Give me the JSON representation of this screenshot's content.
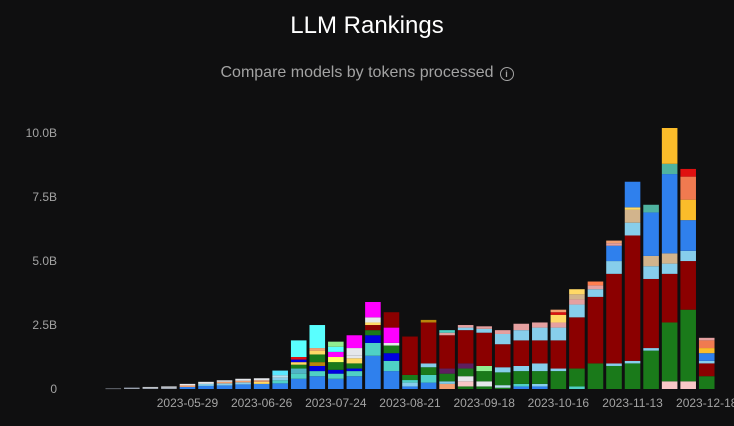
{
  "header": {
    "title": "LLM Rankings",
    "subtitle": "Compare models by tokens processed"
  },
  "chart_data": {
    "type": "bar",
    "stacked": true,
    "title": "LLM Rankings",
    "subtitle": "Compare models by tokens processed",
    "xlabel": "",
    "ylabel": "",
    "ylim": [
      0,
      10.2
    ],
    "y_unit": "B",
    "y_ticks": [
      {
        "value": 0,
        "label": "0"
      },
      {
        "value": 2.5,
        "label": "2.5B"
      },
      {
        "value": 5,
        "label": "5.0B"
      },
      {
        "value": 7.5,
        "label": "7.5B"
      },
      {
        "value": 10,
        "label": "10.0B"
      }
    ],
    "x_tick_labels": [
      "2023-05-29",
      "2023-06-26",
      "2023-07-24",
      "2023-08-21",
      "2023-09-18",
      "2023-10-16",
      "2023-11-13",
      "2023-12-18"
    ],
    "x_tick_positions": [
      4,
      8,
      12,
      16,
      20,
      24,
      28,
      32
    ],
    "grid": false,
    "legend": "none",
    "bars": [
      {
        "segments": [
          [
            0.02,
            "#9ca3af"
          ]
        ]
      },
      {
        "segments": [
          [
            0.04,
            "#9ca3af"
          ],
          [
            0.02,
            "#6b7280"
          ]
        ]
      },
      {
        "segments": [
          [
            0.05,
            "#9ca3af"
          ],
          [
            0.03,
            "#e5e7eb"
          ]
        ]
      },
      {
        "segments": [
          [
            0.06,
            "#9ca3af"
          ],
          [
            0.04,
            "#e5e7eb"
          ]
        ]
      },
      {
        "segments": [
          [
            0.08,
            "#2f80ed"
          ],
          [
            0.06,
            "#f2a071"
          ],
          [
            0.06,
            "#e5e7eb"
          ]
        ]
      },
      {
        "segments": [
          [
            0.12,
            "#2f80ed"
          ],
          [
            0.08,
            "#87ceeb"
          ],
          [
            0.08,
            "#e5e7eb"
          ]
        ]
      },
      {
        "segments": [
          [
            0.14,
            "#2f80ed"
          ],
          [
            0.08,
            "#87ceeb"
          ],
          [
            0.06,
            "#f2a071"
          ],
          [
            0.06,
            "#e5e7eb"
          ]
        ]
      },
      {
        "segments": [
          [
            0.18,
            "#2f80ed"
          ],
          [
            0.08,
            "#87ceeb"
          ],
          [
            0.06,
            "#f2a071"
          ],
          [
            0.08,
            "#e5e7eb"
          ]
        ]
      },
      {
        "segments": [
          [
            0.2,
            "#2f80ed"
          ],
          [
            0.08,
            "#ffd966"
          ],
          [
            0.06,
            "#f2a071"
          ],
          [
            0.08,
            "#e5e7eb"
          ]
        ]
      },
      {
        "segments": [
          [
            0.22,
            "#2f80ed"
          ],
          [
            0.12,
            "#4fd1c5"
          ],
          [
            0.1,
            "#87ceeb"
          ],
          [
            0.1,
            "#b8e0f0"
          ],
          [
            0.18,
            "#59e7ff"
          ]
        ]
      },
      {
        "segments": [
          [
            0.4,
            "#2f80ed"
          ],
          [
            0.2,
            "#4fd1c5"
          ],
          [
            0.2,
            "#4fb3c5"
          ],
          [
            0.15,
            "#1a7a1a"
          ],
          [
            0.1,
            "#ffd966"
          ],
          [
            0.1,
            "#0000e0"
          ],
          [
            0.1,
            "#e01010"
          ],
          [
            0.65,
            "#59ffff"
          ]
        ]
      },
      {
        "segments": [
          [
            0.5,
            "#2f80ed"
          ],
          [
            0.2,
            "#4fd1c5"
          ],
          [
            0.2,
            "#0000e0"
          ],
          [
            0.15,
            "#b8860b"
          ],
          [
            0.3,
            "#1a7a1a"
          ],
          [
            0.15,
            "#ffd966"
          ],
          [
            0.1,
            "#f2a071"
          ],
          [
            0.9,
            "#59ffff"
          ]
        ]
      },
      {
        "segments": [
          [
            0.4,
            "#2f80ed"
          ],
          [
            0.2,
            "#4fd1c5"
          ],
          [
            0.15,
            "#0000e0"
          ],
          [
            0.3,
            "#1a7a1a"
          ],
          [
            0.2,
            "#ffff66"
          ],
          [
            0.2,
            "#ff00ff"
          ],
          [
            0.2,
            "#59ffff"
          ],
          [
            0.2,
            "#90ee90"
          ]
        ]
      },
      {
        "segments": [
          [
            0.5,
            "#2f80ed"
          ],
          [
            0.2,
            "#4fd1c5"
          ],
          [
            0.1,
            "#0000e0"
          ],
          [
            0.2,
            "#1a7a1a"
          ],
          [
            0.2,
            "#ffd966"
          ],
          [
            0.1,
            "#e5e7eb"
          ],
          [
            0.3,
            "#e5e7eb"
          ],
          [
            0.5,
            "#ff00ff"
          ]
        ]
      },
      {
        "segments": [
          [
            1.3,
            "#2f80ed"
          ],
          [
            0.5,
            "#4fd1c5"
          ],
          [
            0.3,
            "#0000e0"
          ],
          [
            0.2,
            "#1a7a1a"
          ],
          [
            0.2,
            "#8b0000"
          ],
          [
            0.1,
            "#ffd966"
          ],
          [
            0.2,
            "#e5e7eb"
          ],
          [
            0.6,
            "#ff00ff"
          ]
        ]
      },
      {
        "segments": [
          [
            0.7,
            "#2f80ed"
          ],
          [
            0.4,
            "#4fd1c5"
          ],
          [
            0.3,
            "#0000e0"
          ],
          [
            0.3,
            "#1a7a1a"
          ],
          [
            0.1,
            "#e5e7eb"
          ],
          [
            0.6,
            "#ff00ff"
          ],
          [
            0.6,
            "#8b0000"
          ]
        ]
      },
      {
        "segments": [
          [
            0.1,
            "#2f80ed"
          ],
          [
            0.15,
            "#87ceeb"
          ],
          [
            0.1,
            "#4fd1c5"
          ],
          [
            0.2,
            "#1a7a1a"
          ],
          [
            1.5,
            "#8b0000"
          ]
        ]
      },
      {
        "segments": [
          [
            0.25,
            "#2f80ed"
          ],
          [
            0.3,
            "#4fd1c5"
          ],
          [
            0.3,
            "#1a7a1a"
          ],
          [
            0.15,
            "#87ceeb"
          ],
          [
            1.6,
            "#8b0000"
          ],
          [
            0.1,
            "#b8860b"
          ]
        ]
      },
      {
        "segments": [
          [
            0.2,
            "#f2a071"
          ],
          [
            0.1,
            "#87ceeb"
          ],
          [
            0.3,
            "#1a7a1a"
          ],
          [
            0.2,
            "#5f1f5f"
          ],
          [
            1.3,
            "#8b0000"
          ],
          [
            0.1,
            "#e5a0a0"
          ],
          [
            0.1,
            "#4fd1c5"
          ]
        ]
      },
      {
        "segments": [
          [
            0.1,
            "#1a7a1a"
          ],
          [
            0.2,
            "#f9c7c7"
          ],
          [
            0.2,
            "#e5e7eb"
          ],
          [
            0.3,
            "#1a7a1a"
          ],
          [
            0.2,
            "#5f1f5f"
          ],
          [
            1.3,
            "#8b0000"
          ],
          [
            0.1,
            "#87ceeb"
          ],
          [
            0.1,
            "#e5a0a0"
          ]
        ]
      },
      {
        "segments": [
          [
            0.1,
            "#1a7a1a"
          ],
          [
            0.2,
            "#e5e7eb"
          ],
          [
            0.4,
            "#1a7a1a"
          ],
          [
            0.2,
            "#90ee90"
          ],
          [
            1.3,
            "#8b0000"
          ],
          [
            0.15,
            "#87ceeb"
          ],
          [
            0.1,
            "#e5a0a0"
          ]
        ]
      },
      {
        "segments": [
          [
            0.05,
            "#1a7a1a"
          ],
          [
            0.1,
            "#b8e0f0"
          ],
          [
            0.5,
            "#1a7a1a"
          ],
          [
            0.2,
            "#87ceeb"
          ],
          [
            0.9,
            "#8b0000"
          ],
          [
            0.4,
            "#87ceeb"
          ],
          [
            0.15,
            "#e5a0a0"
          ]
        ]
      },
      {
        "segments": [
          [
            0.1,
            "#2f80ed"
          ],
          [
            0.1,
            "#4fd1c5"
          ],
          [
            0.5,
            "#1a7a1a"
          ],
          [
            0.2,
            "#87ceeb"
          ],
          [
            1.0,
            "#8b0000"
          ],
          [
            0.4,
            "#87ceeb"
          ],
          [
            0.25,
            "#e5a0a0"
          ]
        ]
      },
      {
        "segments": [
          [
            0.1,
            "#2f80ed"
          ],
          [
            0.1,
            "#87ceeb"
          ],
          [
            0.5,
            "#1a7a1a"
          ],
          [
            0.3,
            "#87ceeb"
          ],
          [
            0.9,
            "#8b0000"
          ],
          [
            0.5,
            "#87ceeb"
          ],
          [
            0.2,
            "#e5a0a0"
          ]
        ]
      },
      {
        "segments": [
          [
            0.7,
            "#1a7a1a"
          ],
          [
            0.1,
            "#87ceeb"
          ],
          [
            1.1,
            "#8b0000"
          ],
          [
            0.5,
            "#87ceeb"
          ],
          [
            0.2,
            "#e5a0a0"
          ],
          [
            0.3,
            "#ffd966"
          ],
          [
            0.1,
            "#e01010"
          ],
          [
            0.1,
            "#f2a071"
          ]
        ]
      },
      {
        "segments": [
          [
            0.1,
            "#4fd1c5"
          ],
          [
            0.7,
            "#1a7a1a"
          ],
          [
            2.0,
            "#8b0000"
          ],
          [
            0.5,
            "#87ceeb"
          ],
          [
            0.2,
            "#e5a0a0"
          ],
          [
            0.2,
            "#d2b48c"
          ],
          [
            0.2,
            "#ffd966"
          ]
        ]
      },
      {
        "segments": [
          [
            1.0,
            "#1a7a1a"
          ],
          [
            2.6,
            "#8b0000"
          ],
          [
            0.3,
            "#87ceeb"
          ],
          [
            0.15,
            "#e5a0a0"
          ],
          [
            0.15,
            "#ff7f50"
          ]
        ]
      },
      {
        "segments": [
          [
            0.9,
            "#1a7a1a"
          ],
          [
            0.1,
            "#87ceeb"
          ],
          [
            3.5,
            "#8b0000"
          ],
          [
            0.5,
            "#87ceeb"
          ],
          [
            0.6,
            "#2f80ed"
          ],
          [
            0.1,
            "#e5a0a0"
          ],
          [
            0.1,
            "#f2a071"
          ]
        ]
      },
      {
        "segments": [
          [
            1.0,
            "#1a7a1a"
          ],
          [
            0.1,
            "#87ceeb"
          ],
          [
            4.9,
            "#8b0000"
          ],
          [
            0.5,
            "#87ceeb"
          ],
          [
            0.5,
            "#d2b48c"
          ],
          [
            0.1,
            "#ffd966"
          ],
          [
            1.0,
            "#2f80ed"
          ]
        ]
      },
      {
        "segments": [
          [
            1.5,
            "#1a7a1a"
          ],
          [
            0.1,
            "#87ceeb"
          ],
          [
            2.7,
            "#8b0000"
          ],
          [
            0.5,
            "#87ceeb"
          ],
          [
            0.4,
            "#d2b48c"
          ],
          [
            1.7,
            "#2f80ed"
          ],
          [
            0.3,
            "#4fb3a0"
          ]
        ]
      },
      {
        "segments": [
          [
            0.3,
            "#f9c7c7"
          ],
          [
            2.3,
            "#1a7a1a"
          ],
          [
            1.9,
            "#8b0000"
          ],
          [
            0.4,
            "#87ceeb"
          ],
          [
            0.4,
            "#d2b48c"
          ],
          [
            3.1,
            "#2f80ed"
          ],
          [
            0.4,
            "#4fb3a0"
          ],
          [
            1.4,
            "#fbbc2a"
          ]
        ]
      },
      {
        "segments": [
          [
            0.3,
            "#f9c7c7"
          ],
          [
            2.8,
            "#1a7a1a"
          ],
          [
            1.9,
            "#8b0000"
          ],
          [
            0.4,
            "#87ceeb"
          ],
          [
            1.2,
            "#2f80ed"
          ],
          [
            0.8,
            "#fbbc2a"
          ],
          [
            0.9,
            "#f07a50"
          ],
          [
            0.3,
            "#e01010"
          ]
        ]
      },
      {
        "segments": [
          [
            0.5,
            "#1a7a1a"
          ],
          [
            0.5,
            "#8b0000"
          ],
          [
            0.1,
            "#87ceeb"
          ],
          [
            0.3,
            "#2f80ed"
          ],
          [
            0.2,
            "#fbbc2a"
          ],
          [
            0.3,
            "#f07a50"
          ],
          [
            0.1,
            "#e5a0a0"
          ]
        ]
      }
    ]
  }
}
